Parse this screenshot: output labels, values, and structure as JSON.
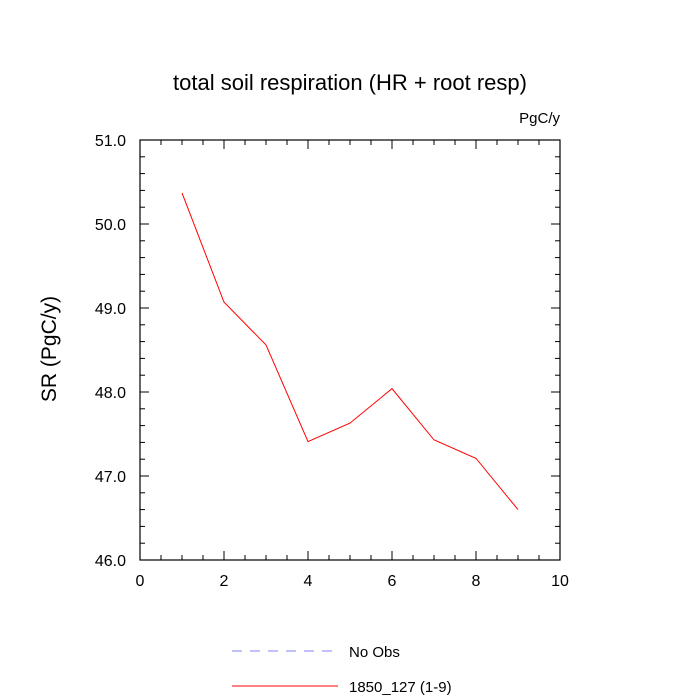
{
  "chart_data": {
    "type": "line",
    "title": "total soil respiration (HR + root resp)",
    "units": "PgC/y",
    "ylabel": "SR  (PgC/y)",
    "xlabel": "",
    "xlim": [
      0,
      10
    ],
    "ylim": [
      46.0,
      51.0
    ],
    "x_ticks": [
      "0",
      "2",
      "4",
      "6",
      "8",
      "10"
    ],
    "y_ticks": [
      "46.0",
      "47.0",
      "48.0",
      "49.0",
      "50.0",
      "51.0"
    ],
    "grid": false,
    "legend_position": "bottom",
    "series": [
      {
        "name": "No Obs",
        "style": "dashed",
        "color": "#8080ff",
        "x": [],
        "y": []
      },
      {
        "name": "1850_127 (1-9)",
        "style": "solid",
        "color": "#ff0000",
        "x": [
          1,
          2,
          3,
          4,
          5,
          6,
          7,
          8,
          9
        ],
        "y": [
          50.37,
          49.07,
          48.56,
          47.41,
          47.63,
          48.04,
          47.43,
          47.21,
          46.6
        ]
      }
    ]
  }
}
